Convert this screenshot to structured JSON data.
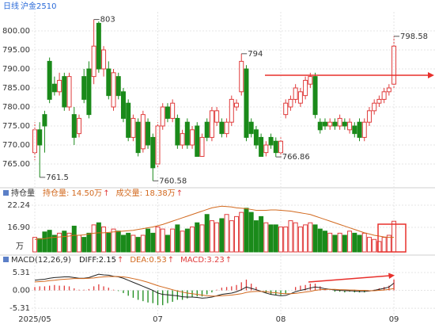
{
  "header": {
    "period": "日线",
    "symbol": "沪金2510"
  },
  "chart_data": [
    {
      "type": "candlestick",
      "categories": [
        "2025/05",
        null,
        null,
        null,
        null,
        null,
        null,
        null,
        null,
        null,
        null,
        null,
        null,
        null,
        null,
        null,
        null,
        null,
        null,
        null,
        null,
        null,
        null,
        null,
        null,
        "07",
        null,
        null,
        null,
        null,
        null,
        null,
        null,
        null,
        null,
        null,
        null,
        null,
        null,
        null,
        null,
        null,
        null,
        null,
        null,
        null,
        null,
        null,
        null,
        null,
        "08",
        null,
        null,
        null,
        null,
        null,
        null,
        null,
        null,
        null,
        null,
        null,
        null,
        null,
        null,
        null,
        null,
        null,
        null,
        null,
        null,
        null,
        null,
        "09"
      ],
      "open": [
        768,
        774,
        778,
        792,
        786,
        784,
        788,
        780,
        778,
        773,
        788,
        790,
        788,
        802,
        790,
        790,
        780,
        788,
        784,
        781,
        772,
        776,
        769,
        776,
        772,
        765,
        775,
        780,
        777,
        777,
        770,
        776,
        770,
        775,
        767,
        776,
        772,
        776,
        776,
        773,
        776,
        780,
        784,
        790,
        776,
        774,
        772,
        768,
        772,
        771,
        768,
        778,
        780,
        782,
        781,
        783,
        786,
        788,
        776,
        776,
        775,
        776,
        775,
        776,
        774,
        775,
        776,
        772,
        776,
        779,
        781,
        782,
        784,
        786
      ],
      "high": [
        776,
        776,
        779,
        793,
        788,
        789,
        789,
        789,
        780,
        778,
        790,
        792,
        803,
        802.5,
        796,
        792,
        790,
        789,
        785,
        782,
        778,
        777,
        779,
        777,
        773,
        776,
        781,
        781,
        782,
        778,
        774,
        777,
        775,
        776,
        773,
        777,
        780,
        780,
        777,
        777,
        783,
        782,
        794,
        791,
        777,
        775,
        773,
        771,
        773,
        772,
        772,
        782,
        783,
        786,
        785,
        788,
        789,
        789,
        777,
        777,
        777,
        777,
        778,
        777,
        777,
        776,
        777,
        777,
        780,
        782,
        783,
        785,
        786,
        798.58
      ],
      "low": [
        766,
        761.5,
        768,
        781,
        783,
        783,
        779,
        779,
        770,
        772,
        781,
        777,
        786,
        789,
        788,
        782,
        779,
        782,
        776,
        771,
        771,
        767,
        768,
        769,
        760.58,
        764,
        774,
        776,
        776,
        769,
        769,
        769,
        769,
        767,
        766.9,
        771,
        771,
        775,
        772,
        772,
        775,
        779,
        783,
        771,
        772,
        769,
        767,
        767,
        769,
        766.86,
        767,
        777,
        779,
        781,
        780,
        782,
        785,
        777,
        773,
        774,
        774,
        774,
        774,
        774,
        773,
        772,
        771,
        771,
        775,
        778,
        780,
        781,
        783,
        785
      ],
      "close": [
        774,
        770,
        775,
        782,
        784,
        787,
        780,
        788,
        772,
        777,
        782,
        778,
        796,
        790,
        795,
        783,
        789,
        783,
        777,
        772,
        777,
        768,
        778,
        770,
        764,
        775,
        780,
        777,
        781,
        770,
        773,
        770,
        774,
        767,
        772,
        772,
        779,
        779,
        773,
        776,
        782,
        781,
        792,
        772,
        773,
        770,
        767,
        770,
        770,
        768,
        771,
        781,
        782,
        785,
        784,
        787,
        788,
        778,
        774,
        775,
        776,
        775,
        777,
        775,
        776,
        773,
        772,
        776,
        779,
        781,
        782,
        784,
        785,
        796
      ],
      "ylim": [
        759.8,
        805
      ],
      "yticks": [
        {
          "value": 765,
          "label": "765.00"
        },
        {
          "value": 770,
          "label": "770.00"
        },
        {
          "value": 775,
          "label": "775.00"
        },
        {
          "value": 780,
          "label": "780.00"
        },
        {
          "value": 785,
          "label": "785.00"
        },
        {
          "value": 790,
          "label": "790.00"
        },
        {
          "value": 795,
          "label": "795.00"
        },
        {
          "value": 800,
          "label": "800.00"
        }
      ],
      "up_color": "#e03c3c",
      "down_color": "#1a8a1a",
      "grid": true
    },
    {
      "type": "volume",
      "title": "持仓量",
      "unit": "万",
      "legend": [
        {
          "text": "持仓量: 14.50万",
          "color": "#d2691e",
          "arrow": "↑"
        },
        {
          "text": "成交量: 18.38万",
          "color": "#d2691e",
          "arrow": "↑"
        }
      ],
      "series": [
        {
          "name": "成交量",
          "values": [
            14.5,
            14.2,
            15.8,
            16.2,
            15.0,
            15.5,
            16.0,
            15.5,
            17.2,
            15.0,
            14.5,
            15.5,
            17.5,
            18.0,
            17.0,
            15.5,
            16.5,
            16.0,
            15.0,
            15.5,
            15.0,
            14.5,
            15.0,
            16.5,
            15.5,
            17.0,
            16.5,
            15.0,
            16.5,
            17.5,
            16.0,
            16.5,
            17.0,
            18.0,
            17.5,
            20.0,
            18.5,
            18.0,
            19.0,
            20.0,
            18.5,
            19.5,
            20.5,
            21.5,
            20.5,
            18.5,
            19.5,
            18.0,
            17.5,
            17.5,
            17.0,
            17.0,
            18.5,
            18.0,
            17.0,
            17.5,
            18.0,
            17.5,
            16.5,
            16.0,
            15.5,
            15.0,
            15.5,
            15.0,
            16.0,
            15.5,
            15.0,
            15.5,
            14.5,
            14.0,
            13.5,
            14.5,
            15.0,
            18.38
          ]
        },
        {
          "name": "持仓量",
          "color": "#d2691e",
          "values": [
            14.0,
            14.1,
            14.2,
            14.4,
            14.5,
            14.6,
            14.7,
            14.8,
            15.0,
            15.0,
            15.1,
            15.3,
            15.5,
            15.6,
            15.6,
            15.7,
            15.8,
            15.9,
            16.0,
            16.1,
            16.2,
            16.4,
            16.6,
            16.8,
            17.0,
            17.3,
            17.6,
            18.0,
            18.4,
            18.8,
            19.2,
            19.6,
            20.0,
            20.4,
            20.8,
            21.2,
            21.6,
            21.8,
            22.0,
            21.9,
            21.8,
            21.6,
            21.5,
            21.4,
            21.2,
            21.0,
            21.0,
            21.0,
            21.1,
            21.1,
            21.0,
            20.9,
            20.8,
            20.6,
            20.4,
            20.2,
            20.0,
            19.6,
            19.2,
            18.8,
            18.4,
            18.0,
            17.6,
            17.2,
            16.8,
            16.4,
            16.0,
            15.6,
            15.3,
            15.0,
            14.8,
            14.6,
            14.5,
            14.5
          ]
        }
      ],
      "ylim": [
        11,
        23.57
      ],
      "yticks": [
        {
          "value": 16.9,
          "label": "16.90"
        },
        22.24
      ]
    },
    {
      "type": "macd",
      "title": "MACD(12,26,9)",
      "legend": [
        {
          "text": "DIFF:2.15",
          "color": "#222222",
          "arrow": "↑"
        },
        {
          "text": "DEA:0.53",
          "color": "#d2691e",
          "arrow": "↑"
        },
        {
          "text": "MACD:3.23",
          "color": "#e03c3c",
          "arrow": "↑"
        }
      ],
      "series": [
        {
          "name": "DIFF",
          "color": "#222222",
          "values": [
            3.0,
            3.2,
            3.3,
            3.6,
            3.8,
            3.9,
            4.0,
            4.0,
            3.8,
            3.6,
            3.6,
            3.8,
            4.3,
            4.8,
            4.6,
            4.5,
            4.2,
            4.0,
            3.6,
            3.0,
            2.4,
            1.8,
            1.2,
            0.6,
            0.0,
            -0.8,
            -1.2,
            -1.3,
            -1.5,
            -1.6,
            -1.9,
            -2.0,
            -2.0,
            -2.1,
            -2.3,
            -2.2,
            -2.0,
            -1.6,
            -1.2,
            -1.0,
            -0.8,
            -0.4,
            0.2,
            1.0,
            0.6,
            0.2,
            -0.3,
            -0.8,
            -1.2,
            -1.4,
            -1.6,
            -1.5,
            -1.0,
            -0.4,
            0.0,
            0.3,
            0.7,
            1.0,
            0.8,
            0.5,
            0.3,
            0.1,
            0.0,
            -0.1,
            -0.1,
            -0.2,
            -0.3,
            -0.3,
            -0.2,
            0.0,
            0.3,
            0.6,
            1.0,
            2.15
          ]
        },
        {
          "name": "DEA",
          "color": "#d2691e",
          "values": [
            2.5,
            2.6,
            2.7,
            2.9,
            3.0,
            3.2,
            3.3,
            3.4,
            3.5,
            3.5,
            3.5,
            3.6,
            3.7,
            3.9,
            4.0,
            4.1,
            4.1,
            4.1,
            4.0,
            3.8,
            3.5,
            3.2,
            2.8,
            2.4,
            1.9,
            1.4,
            1.0,
            0.6,
            0.2,
            -0.2,
            -0.5,
            -0.8,
            -1.0,
            -1.2,
            -1.4,
            -1.6,
            -1.7,
            -1.7,
            -1.6,
            -1.5,
            -1.4,
            -1.2,
            -1.0,
            -0.6,
            -0.4,
            -0.3,
            -0.3,
            -0.4,
            -0.6,
            -0.7,
            -0.9,
            -1.0,
            -1.0,
            -0.9,
            -0.7,
            -0.5,
            -0.3,
            0.0,
            0.2,
            0.3,
            0.3,
            0.3,
            0.2,
            0.2,
            0.1,
            0.1,
            0.0,
            0.0,
            -0.1,
            -0.1,
            0.0,
            0.1,
            0.3,
            0.53
          ]
        },
        {
          "name": "MACD",
          "values": [
            1.0,
            1.2,
            1.2,
            1.4,
            1.6,
            1.4,
            1.4,
            1.2,
            0.6,
            0.2,
            0.2,
            0.4,
            1.2,
            1.8,
            1.2,
            0.8,
            0.2,
            -0.2,
            -0.8,
            -1.6,
            -2.2,
            -2.8,
            -3.2,
            -3.6,
            -3.8,
            -4.4,
            -4.4,
            -3.8,
            -3.4,
            -2.8,
            -2.8,
            -2.4,
            -2.0,
            -1.8,
            -1.8,
            -1.2,
            -0.6,
            0.2,
            0.8,
            1.0,
            1.2,
            1.6,
            2.4,
            3.2,
            2.0,
            1.0,
            0.0,
            -0.8,
            -1.2,
            -1.4,
            -1.4,
            -1.0,
            0.0,
            1.0,
            1.4,
            1.6,
            2.0,
            2.0,
            1.2,
            0.4,
            0.0,
            -0.4,
            -0.4,
            -0.6,
            -0.4,
            -0.6,
            -0.6,
            -0.6,
            -0.2,
            0.2,
            0.6,
            1.0,
            1.4,
            3.23
          ]
        }
      ],
      "ylim": [
        -7.4,
        8.6
      ],
      "yticks": [
        -5.31,
        {
          "value": 0,
          "label": "0.00"
        },
        5.31
      ]
    }
  ]
}
